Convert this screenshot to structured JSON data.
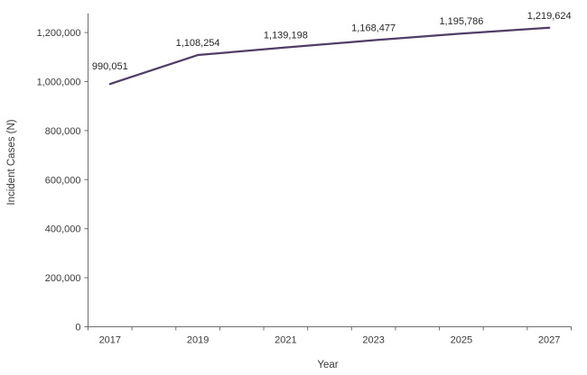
{
  "chart_data": {
    "type": "line",
    "title": "",
    "xlabel": "Year",
    "ylabel": "Incident Cases (N)",
    "x": [
      2017,
      2019,
      2021,
      2023,
      2025,
      2027
    ],
    "x_tick_labels": [
      "2017",
      "2019",
      "2021",
      "2023",
      "2025",
      "2027"
    ],
    "series": [
      {
        "values": [
          990051,
          1108254,
          1139198,
          1168477,
          1195786,
          1219624
        ]
      }
    ],
    "data_labels": [
      "990,051",
      "1,108,254",
      "1,139,198",
      "1,168,477",
      "1,195,786",
      "1,219,624"
    ],
    "ylim": [
      0,
      1200000
    ],
    "y_ticks": [
      {
        "value": 0,
        "label": "0"
      },
      {
        "value": 200000,
        "label": "200,000"
      },
      {
        "value": 400000,
        "label": "400,000"
      },
      {
        "value": 600000,
        "label": "600,000"
      },
      {
        "value": 800000,
        "label": "800,000"
      },
      {
        "value": 1000000,
        "label": "1,000,000"
      },
      {
        "value": 1200000,
        "label": "1,200,000"
      }
    ],
    "grid": false,
    "legend": "none",
    "colors": {
      "line": "#503E66",
      "axis": "#6E6E6E",
      "text": "#3A3A3A"
    }
  }
}
